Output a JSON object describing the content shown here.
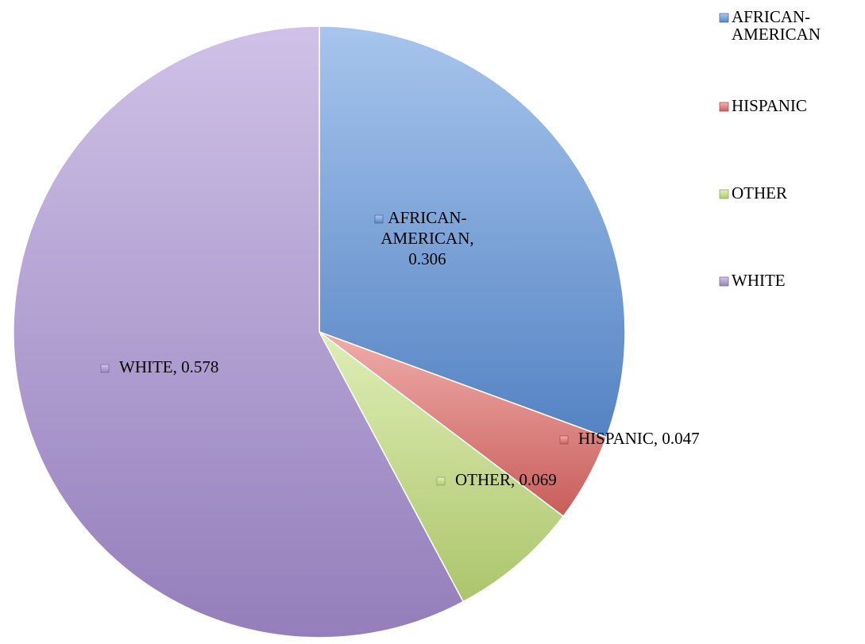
{
  "chart_data": {
    "type": "pie",
    "title": "",
    "legend_position": "right",
    "slices": [
      {
        "label": "AFRICAN-AMERICAN",
        "legend_lines": [
          "AFRICAN-",
          "AMERICAN"
        ],
        "value": 0.306,
        "value_label": "0.306",
        "color": "#5f95de"
      },
      {
        "label": "HISPANIC",
        "legend_lines": [
          "HISPANIC"
        ],
        "value": 0.047,
        "value_label": "0.047",
        "color": "#e36a66"
      },
      {
        "label": "OTHER",
        "legend_lines": [
          "OTHER"
        ],
        "value": 0.069,
        "value_label": "0.069",
        "color": "#c3e07a"
      },
      {
        "label": "WHITE",
        "legend_lines": [
          "WHITE"
        ],
        "value": 0.578,
        "value_label": "0.578",
        "color": "#a88fd4"
      }
    ],
    "data_labels": [
      {
        "lines": [
          "AFRICAN-",
          "AMERICAN,",
          "0.306"
        ]
      },
      {
        "lines": [
          "HISPANIC, 0.047"
        ]
      },
      {
        "lines": [
          "OTHER, 0.069"
        ]
      },
      {
        "lines": [
          "WHITE, 0.578"
        ]
      }
    ]
  }
}
